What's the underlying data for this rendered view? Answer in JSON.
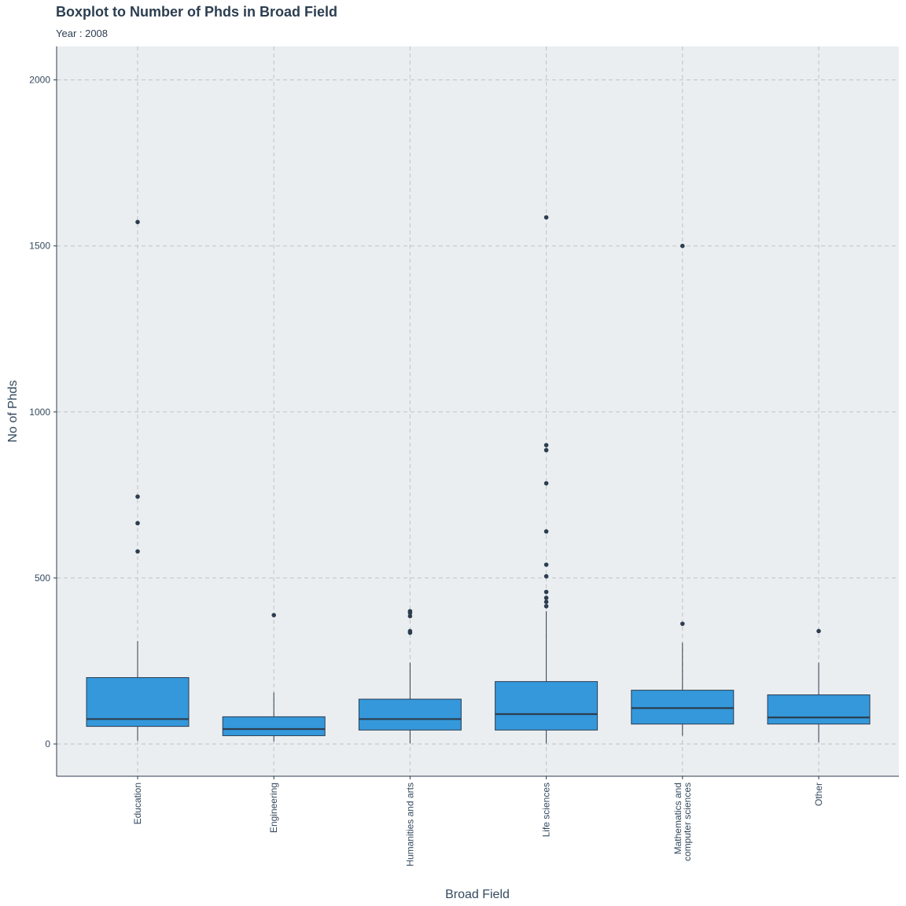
{
  "chart_data": {
    "type": "boxplot",
    "title": "Boxplot to Number of Phds in Broad Field",
    "subtitle": "Year : 2008",
    "xlabel": "Broad Field",
    "ylabel": "No of Phds",
    "ylim": [
      -100,
      2100
    ],
    "yticks": [
      0,
      500,
      1000,
      1500,
      2000
    ],
    "grid": true,
    "colors": {
      "box_fill": "#3498DB",
      "line": "#2C3E50",
      "panel": "#EBEEF0",
      "grid": "#BDC3C7"
    },
    "categories": [
      "Education",
      "Engineering",
      "Humanities and arts",
      "Life sciences",
      "Mathematics and\ncomputer sciences",
      "Other"
    ],
    "boxes": [
      {
        "min": 10,
        "q1": 53,
        "median": 75,
        "q3": 200,
        "max": 310,
        "outliers": [
          1572,
          745,
          665,
          580
        ]
      },
      {
        "min": 8,
        "q1": 25,
        "median": 45,
        "q3": 82,
        "max": 155,
        "outliers": [
          388
        ]
      },
      {
        "min": 2,
        "q1": 42,
        "median": 75,
        "q3": 135,
        "max": 245,
        "outliers": [
          400,
          395,
          385,
          340,
          335
        ]
      },
      {
        "min": 2,
        "q1": 42,
        "median": 90,
        "q3": 188,
        "max": 400,
        "outliers": [
          1586,
          900,
          885,
          785,
          640,
          540,
          505,
          458,
          440,
          428,
          415
        ]
      },
      {
        "min": 25,
        "q1": 60,
        "median": 108,
        "q3": 162,
        "max": 305,
        "outliers": [
          1500,
          362
        ]
      },
      {
        "min": 5,
        "q1": 60,
        "median": 80,
        "q3": 148,
        "max": 245,
        "outliers": [
          340
        ]
      }
    ]
  }
}
